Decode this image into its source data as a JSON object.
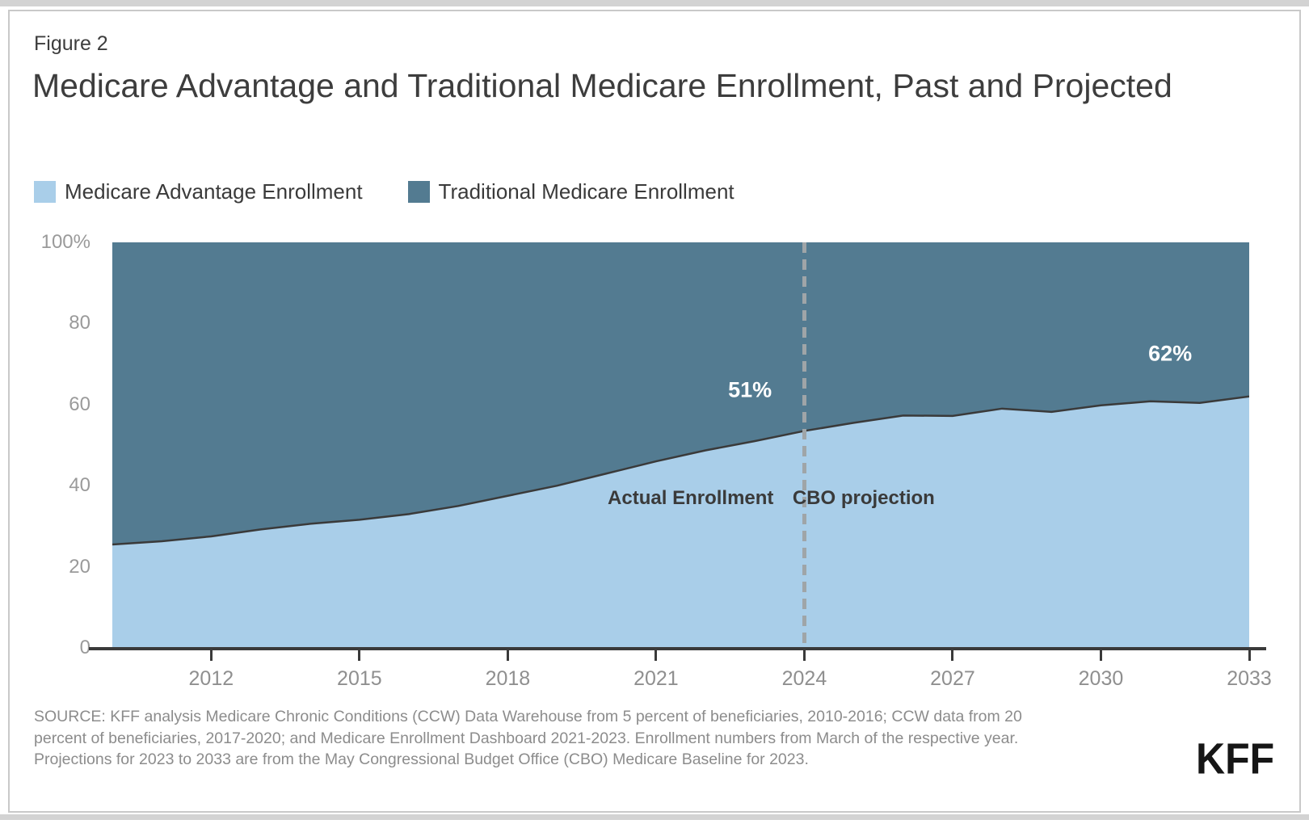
{
  "page": {
    "figure_label": "Figure 2",
    "title": "Medicare Advantage and Traditional Medicare Enrollment, Past and Projected"
  },
  "legend": {
    "items": [
      {
        "label": "Medicare Advantage Enrollment",
        "color": "#A9CEE9"
      },
      {
        "label": "Traditional Medicare Enrollment",
        "color": "#537B91"
      }
    ]
  },
  "chart_data": {
    "type": "area",
    "subtype": "100%-stacked",
    "title": "Medicare Advantage and Traditional Medicare Enrollment, Past and Projected",
    "xlabel": "",
    "ylabel": "",
    "x_range": [
      2010,
      2033
    ],
    "y_range": [
      0,
      100
    ],
    "grid": false,
    "x": [
      2010,
      2011,
      2012,
      2013,
      2014,
      2015,
      2016,
      2017,
      2018,
      2019,
      2020,
      2021,
      2022,
      2023,
      2024,
      2025,
      2026,
      2027,
      2028,
      2029,
      2030,
      2031,
      2032,
      2033
    ],
    "series": [
      {
        "name": "Medicare Advantage Enrollment",
        "color": "#A9CEE9",
        "values": [
          25.5,
          26.3,
          27.5,
          29.2,
          30.6,
          31.6,
          33,
          35,
          37.5,
          40,
          43,
          46,
          48.7,
          51,
          53.5,
          55.5,
          57.3,
          57.2,
          59,
          58.2,
          59.8,
          60.8,
          60.4,
          62
        ]
      },
      {
        "name": "Traditional Medicare Enrollment",
        "color": "#537B91",
        "values": [
          74.5,
          73.7,
          72.5,
          70.8,
          69.4,
          68.4,
          67,
          65,
          62.5,
          60,
          57,
          54,
          51.3,
          49,
          46.5,
          44.5,
          42.7,
          42.8,
          41,
          41.8,
          40.2,
          39.2,
          39.6,
          38
        ]
      }
    ],
    "line_color": "#3A3A3A",
    "y_ticks": [
      {
        "label": "100%",
        "value": 100
      },
      {
        "label": "80",
        "value": 80
      },
      {
        "label": "60",
        "value": 60
      },
      {
        "label": "40",
        "value": 40
      },
      {
        "label": "20",
        "value": 20
      },
      {
        "label": "0",
        "value": 0
      }
    ],
    "x_ticks": [
      2012,
      2015,
      2018,
      2021,
      2024,
      2027,
      2030,
      2033
    ],
    "divider": {
      "year": 2024
    },
    "annotations": [
      {
        "text": "51%",
        "year": 2022.9,
        "pct": 63.5,
        "color": "#ffffff",
        "kind": "value"
      },
      {
        "text": "62%",
        "year": 2031.4,
        "pct": 72.5,
        "color": "#ffffff",
        "kind": "value"
      },
      {
        "text": "Actual Enrollment",
        "year": 2021.7,
        "pct": 36.8,
        "color": "#3a3a3a",
        "kind": "zone"
      },
      {
        "text": "CBO projection",
        "year": 2025.2,
        "pct": 36.8,
        "color": "#3a3a3a",
        "kind": "zone"
      }
    ]
  },
  "source": {
    "lines": [
      "SOURCE: KFF analysis Medicare Chronic Conditions (CCW) Data Warehouse from 5 percent of beneficiaries, 2010-2016; CCW data from 20",
      "percent of beneficiaries, 2017-2020; and Medicare Enrollment Dashboard 2021-2023. Enrollment numbers from March of the respective year.",
      "Projections for 2023 to 2033 are from the May Congressional Budget Office (CBO) Medicare Baseline for 2023."
    ]
  },
  "branding": {
    "logo_text": "KFF"
  }
}
